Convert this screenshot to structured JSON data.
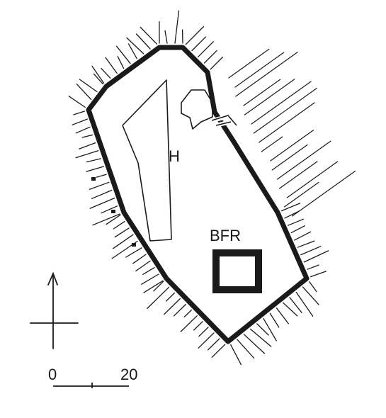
{
  "plan": {
    "labels": {
      "hall": "H",
      "keep": "BFR"
    },
    "scale": {
      "start": "0",
      "end": "20"
    },
    "colors": {
      "ink": "#1a1a1a",
      "paper": "#ffffff"
    }
  }
}
